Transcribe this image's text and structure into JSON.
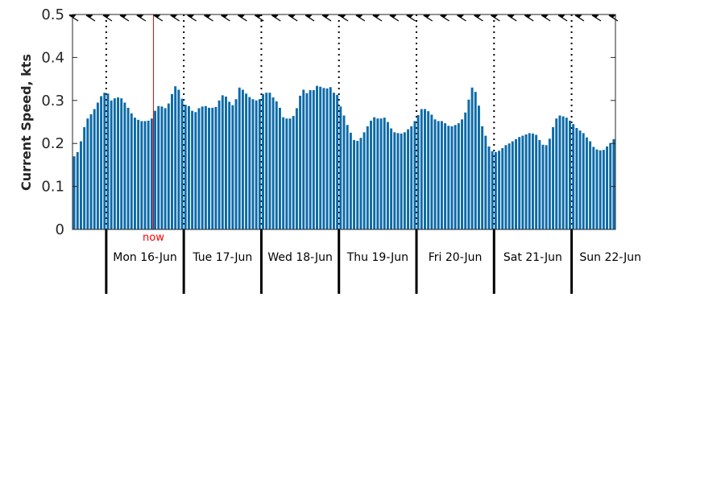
{
  "chart_data": {
    "type": "bar",
    "ylabel": "Current Speed, kts",
    "ylim": [
      0,
      0.5
    ],
    "yticks": [
      "0",
      "0.1",
      "0.2",
      "0.3",
      "0.4",
      "0.5"
    ],
    "bar_color": "#0b6aa8",
    "now_color": "#ff0000",
    "now_label": "now",
    "now_index": 24,
    "days": [
      {
        "label": "Mon 16-Jun",
        "start_index": 10
      },
      {
        "label": "Tue 17-Jun",
        "start_index": 33
      },
      {
        "label": "Wed 18-Jun",
        "start_index": 56
      },
      {
        "label": "Thu 19-Jun",
        "start_index": 79
      },
      {
        "label": "Fri 20-Jun",
        "start_index": 102
      },
      {
        "label": "Sat 21-Jun",
        "start_index": 125
      },
      {
        "label": "Sun 22-Jun",
        "start_index": 148
      }
    ],
    "direction_marks_every": 5,
    "values": [
      0.17,
      0.18,
      0.205,
      0.238,
      0.258,
      0.268,
      0.28,
      0.295,
      0.31,
      0.318,
      0.316,
      0.3,
      0.305,
      0.307,
      0.305,
      0.295,
      0.283,
      0.27,
      0.26,
      0.255,
      0.252,
      0.252,
      0.253,
      0.258,
      0.276,
      0.287,
      0.286,
      0.282,
      0.293,
      0.315,
      0.333,
      0.325,
      0.304,
      0.29,
      0.287,
      0.276,
      0.273,
      0.282,
      0.286,
      0.287,
      0.283,
      0.283,
      0.285,
      0.3,
      0.312,
      0.309,
      0.297,
      0.289,
      0.303,
      0.33,
      0.325,
      0.316,
      0.308,
      0.303,
      0.3,
      0.303,
      0.315,
      0.318,
      0.318,
      0.307,
      0.298,
      0.283,
      0.261,
      0.258,
      0.258,
      0.264,
      0.282,
      0.311,
      0.325,
      0.317,
      0.324,
      0.324,
      0.334,
      0.332,
      0.329,
      0.328,
      0.331,
      0.318,
      0.313,
      0.286,
      0.265,
      0.243,
      0.225,
      0.208,
      0.206,
      0.213,
      0.226,
      0.24,
      0.253,
      0.261,
      0.258,
      0.258,
      0.26,
      0.25,
      0.235,
      0.226,
      0.224,
      0.223,
      0.226,
      0.233,
      0.24,
      0.252,
      0.266,
      0.28,
      0.28,
      0.275,
      0.267,
      0.256,
      0.252,
      0.252,
      0.247,
      0.241,
      0.24,
      0.243,
      0.247,
      0.256,
      0.272,
      0.302,
      0.33,
      0.32,
      0.288,
      0.24,
      0.218,
      0.193,
      0.182,
      0.18,
      0.183,
      0.189,
      0.196,
      0.2,
      0.205,
      0.21,
      0.215,
      0.218,
      0.221,
      0.224,
      0.223,
      0.22,
      0.208,
      0.197,
      0.196,
      0.211,
      0.238,
      0.258,
      0.265,
      0.263,
      0.26,
      0.253,
      0.245,
      0.236,
      0.23,
      0.224,
      0.214,
      0.205,
      0.192,
      0.186,
      0.184,
      0.185,
      0.193,
      0.201,
      0.21
    ]
  }
}
